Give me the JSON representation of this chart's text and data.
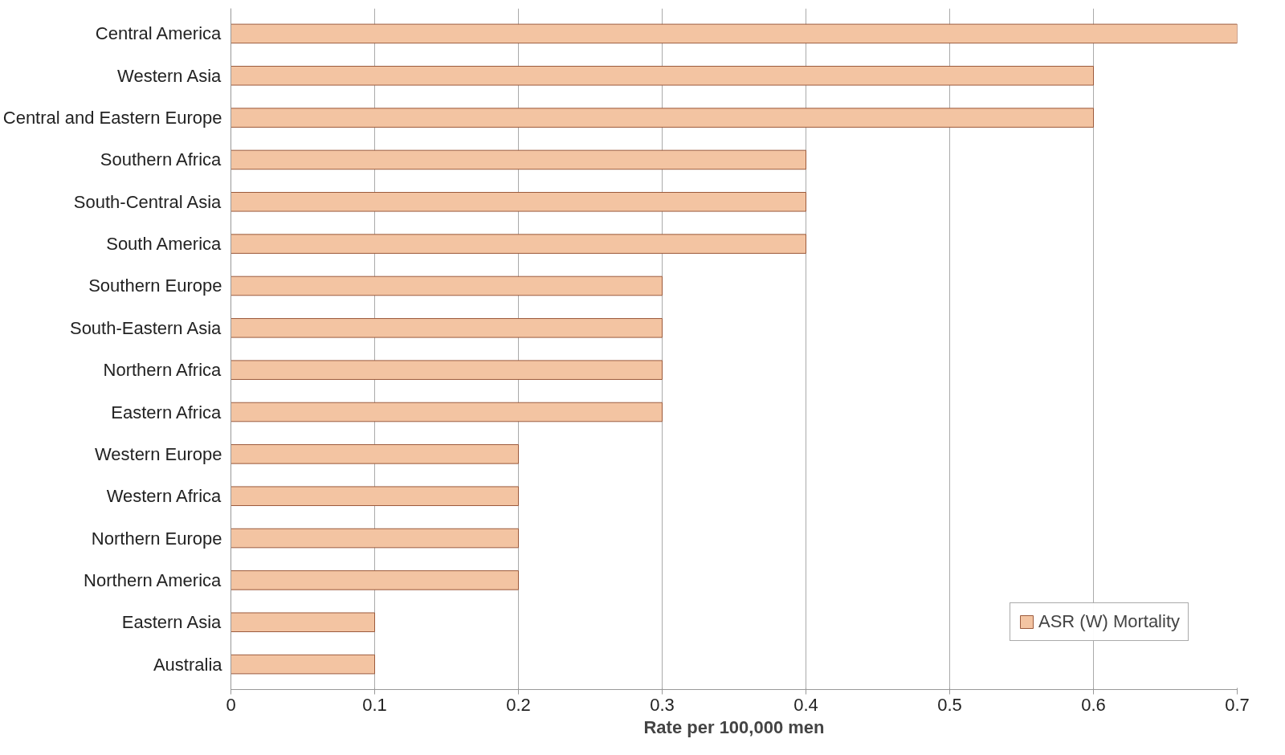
{
  "chart_data": {
    "type": "bar",
    "orientation": "horizontal",
    "xlabel": "Rate per 100,000 men",
    "categories": [
      "Central America",
      "Western Asia",
      "Central and Eastern Europe",
      "Southern Africa",
      "South-Central Asia",
      "South America",
      "Southern Europe",
      "South-Eastern Asia",
      "Northern Africa",
      "Eastern Africa",
      "Western Europe",
      "Western Africa",
      "Northern Europe",
      "Northern America",
      "Eastern Asia",
      "Australia"
    ],
    "series": [
      {
        "name": "ASR (W) Mortality",
        "color": "#f3c4a2",
        "values": [
          0.7,
          0.6,
          0.6,
          0.4,
          0.4,
          0.4,
          0.3,
          0.3,
          0.3,
          0.3,
          0.2,
          0.2,
          0.2,
          0.2,
          0.1,
          0.1
        ]
      }
    ],
    "xlim": [
      0,
      0.7
    ],
    "xticks": [
      0,
      0.1,
      0.2,
      0.3,
      0.4,
      0.5,
      0.6,
      0.7
    ],
    "grid": "x",
    "legend": "bottom right"
  }
}
